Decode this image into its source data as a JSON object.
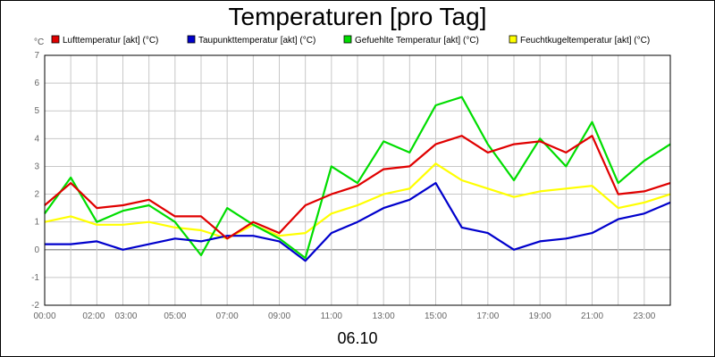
{
  "chart_data": {
    "type": "line",
    "title": "Temperaturen [pro Tag]",
    "ylabel": "°C",
    "xlabel": "06.10",
    "ylim": [
      -2,
      7
    ],
    "yticks": [
      "-2",
      "-1",
      "0",
      "1",
      "2",
      "3",
      "4",
      "5",
      "6",
      "7"
    ],
    "xlim": [
      0,
      24
    ],
    "xticks": [
      {
        "t": 0,
        "label": "00:00"
      },
      {
        "t": 2,
        "label": "02:00"
      },
      {
        "t": 3,
        "label": "03:00"
      },
      {
        "t": 5,
        "label": "05:00"
      },
      {
        "t": 7,
        "label": "07:00"
      },
      {
        "t": 9,
        "label": "09:00"
      },
      {
        "t": 11,
        "label": "11:00"
      },
      {
        "t": 13,
        "label": "13:00"
      },
      {
        "t": 15,
        "label": "15:00"
      },
      {
        "t": 17,
        "label": "17:00"
      },
      {
        "t": 19,
        "label": "19:00"
      },
      {
        "t": 21,
        "label": "21:00"
      },
      {
        "t": 23,
        "label": "23:00"
      }
    ],
    "grid": true,
    "legend": "top",
    "series": [
      {
        "name": "Lufttemperatur [akt] (°C)",
        "color": "#e00000",
        "x": [
          0,
          1,
          2,
          3,
          4,
          5,
          6,
          7,
          8,
          9,
          10,
          11,
          12,
          13,
          14,
          15,
          16,
          17,
          18,
          19,
          20,
          21,
          22,
          23,
          24
        ],
        "y": [
          1.6,
          2.4,
          1.5,
          1.6,
          1.8,
          1.2,
          1.2,
          0.4,
          1.0,
          0.6,
          1.6,
          2.0,
          2.3,
          2.9,
          3.0,
          3.8,
          4.1,
          3.5,
          3.8,
          3.9,
          3.5,
          4.1,
          2.0,
          2.1,
          2.4
        ]
      },
      {
        "name": "Taupunkttemperatur [akt] (°C)",
        "color": "#0000cc",
        "x": [
          0,
          1,
          2,
          3,
          4,
          5,
          6,
          7,
          8,
          9,
          10,
          11,
          12,
          13,
          14,
          15,
          16,
          17,
          18,
          19,
          20,
          21,
          22,
          23,
          24
        ],
        "y": [
          0.2,
          0.2,
          0.3,
          0.0,
          0.2,
          0.4,
          0.3,
          0.5,
          0.5,
          0.3,
          -0.4,
          0.6,
          1.0,
          1.5,
          1.8,
          2.4,
          0.8,
          0.6,
          0.0,
          0.3,
          0.4,
          0.6,
          1.1,
          1.3,
          1.7
        ]
      },
      {
        "name": "Gefuehlte Temperatur [akt] (°C)",
        "color": "#00dd00",
        "x": [
          0,
          1,
          2,
          3,
          4,
          5,
          6,
          7,
          8,
          9,
          10,
          11,
          12,
          13,
          14,
          15,
          16,
          17,
          18,
          19,
          20,
          21,
          22,
          23,
          24
        ],
        "y": [
          1.3,
          2.6,
          1.0,
          1.4,
          1.6,
          1.0,
          -0.2,
          1.5,
          0.9,
          0.4,
          -0.3,
          3.0,
          2.4,
          3.9,
          3.5,
          5.2,
          5.5,
          3.8,
          2.5,
          4.0,
          3.0,
          4.6,
          2.4,
          3.2,
          3.8
        ]
      },
      {
        "name": "Feuchtkugeltemperatur [akt] (°C)",
        "color": "#ffff00",
        "x": [
          0,
          1,
          2,
          3,
          4,
          5,
          6,
          7,
          8,
          9,
          10,
          11,
          12,
          13,
          14,
          15,
          16,
          17,
          18,
          19,
          20,
          21,
          22,
          23,
          24
        ],
        "y": [
          1.0,
          1.2,
          0.9,
          0.9,
          1.0,
          0.8,
          0.7,
          0.4,
          0.9,
          0.5,
          0.6,
          1.3,
          1.6,
          2.0,
          2.2,
          3.1,
          2.5,
          2.2,
          1.9,
          2.1,
          2.2,
          2.3,
          1.5,
          1.7,
          2.0
        ]
      }
    ]
  }
}
